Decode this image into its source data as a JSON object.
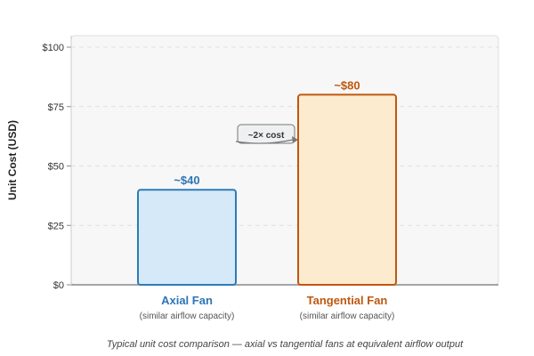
{
  "chart_data": {
    "type": "bar",
    "categories": [
      "Axial Fan",
      "Tangential Fan"
    ],
    "subtitles": [
      "(similar airflow capacity)",
      "(similar airflow capacity)"
    ],
    "values": [
      40,
      80
    ],
    "data_labels": [
      "~$40",
      "~$80"
    ],
    "ylabel": "Unit Cost (USD)",
    "xlabel": "",
    "ylim": [
      0,
      100
    ],
    "yticks": [
      0,
      25,
      50,
      75,
      100
    ],
    "ytick_labels": [
      "$0",
      "$25",
      "$50",
      "$75",
      "$100"
    ],
    "grid": true,
    "annotation": "~2× cost",
    "caption": "Typical unit cost comparison — axial vs tangential fans at equivalent airflow output",
    "colors": {
      "bar_fills": [
        "#d6e9f8",
        "#fdebd0"
      ],
      "bar_strokes": [
        "#2e7bb8",
        "#c0580f"
      ],
      "label_colors": [
        "#2e75b6",
        "#c0580f"
      ],
      "plot_background": "#f7f7f7",
      "grid": "#e0e0e0"
    }
  }
}
